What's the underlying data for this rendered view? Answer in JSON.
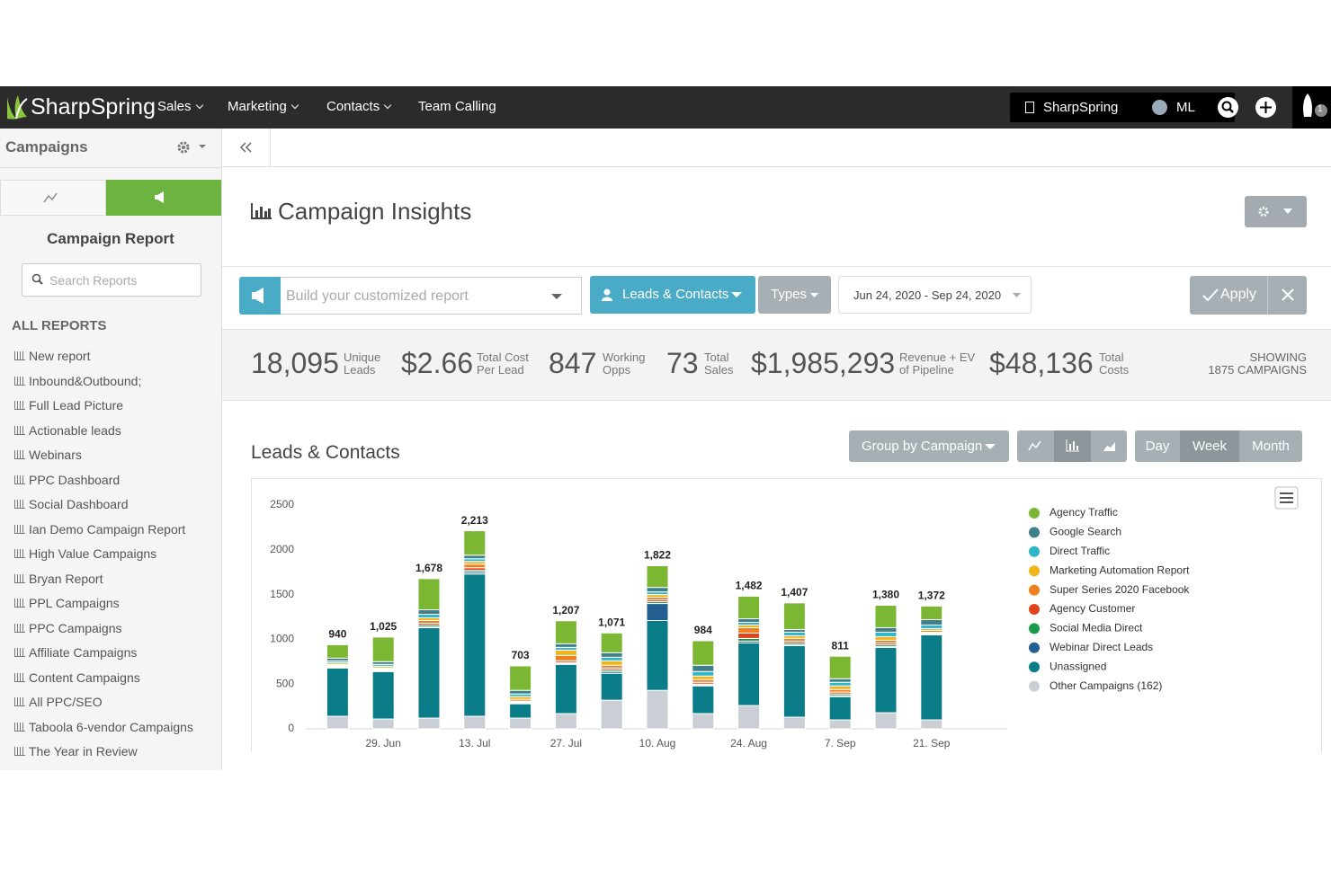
{
  "nav": {
    "brand": "SharpSpring",
    "items": [
      "Sales",
      "Marketing",
      "Contacts",
      "Team Calling"
    ],
    "account": "SharpSpring",
    "user": "ML",
    "badge": "1"
  },
  "sidebar": {
    "title": "Campaigns",
    "panel_title": "Campaign Report",
    "search_placeholder": "Search Reports",
    "section": "ALL REPORTS",
    "reports": [
      "New report",
      "Inbound&Outbound;",
      "Full Lead Picture",
      "Actionable leads",
      "Webinars",
      "PPC Dashboard",
      "Social Dashboard",
      "Ian Demo Campaign Report",
      "High Value Campaigns",
      "Bryan Report",
      "PPL Campaigns",
      "PPC Campaigns",
      "Affiliate Campaigns",
      "Content Campaigns",
      "All PPC/SEO",
      "Taboola 6-vendor Campaigns",
      "The Year in Review"
    ]
  },
  "header": {
    "title": "Campaign Insights"
  },
  "filters": {
    "placeholder": "Build your customized report",
    "leads_button": "Leads & Contacts",
    "types_button": "Types",
    "date_range": "Jun 24, 2020 - Sep 24, 2020",
    "apply": "Apply"
  },
  "stats": [
    {
      "value": "18,095",
      "label": [
        "Unique",
        "Leads"
      ]
    },
    {
      "value": "$2.66",
      "label": [
        "Total Cost",
        "Per Lead"
      ]
    },
    {
      "value": "847",
      "label": [
        "Working",
        "Opps"
      ]
    },
    {
      "value": "73",
      "label": [
        "Total",
        "Sales"
      ]
    },
    {
      "value": "$1,985,293",
      "label": [
        "Revenue + EV",
        "of Pipeline"
      ]
    },
    {
      "value": "$48,136",
      "label": [
        "Total",
        "Costs"
      ]
    }
  ],
  "showing": [
    "SHOWING",
    "1875 CAMPAIGNS"
  ],
  "chart_section": {
    "title": "Leads & Contacts",
    "group_button": "Group by Campaign",
    "periods": [
      "Day",
      "Week",
      "Month"
    ],
    "active_period": "Week"
  },
  "chart_data": {
    "type": "bar",
    "stacked": true,
    "categories": [
      null,
      "29. Jun",
      null,
      "13. Jul",
      null,
      "27. Jul",
      null,
      "10. Aug",
      null,
      "24. Aug",
      null,
      "7. Sep",
      null,
      "21. Sep"
    ],
    "ylim": [
      0,
      2500
    ],
    "yticks": [
      0,
      500,
      1000,
      1500,
      2000,
      2500
    ],
    "totals": [
      940,
      1025,
      1678,
      2213,
      703,
      1207,
      1071,
      1822,
      984,
      1482,
      1407,
      811,
      1380,
      1372
    ],
    "total_labels": [
      "940",
      "1,025",
      "1,678",
      "2,213",
      "703",
      "1,207",
      "1,071",
      "1,822",
      "984",
      "1,482",
      "1,407",
      "811",
      "1,380",
      "1,372"
    ],
    "legend": "right",
    "series": [
      {
        "name": "Agency Traffic",
        "color": "#7cb733",
        "values": [
          150,
          275,
          348,
          273,
          273,
          257,
          221,
          242,
          274,
          252,
          297,
          251,
          250,
          152
        ]
      },
      {
        "name": "Google Search",
        "color": "#3f7f89",
        "values": [
          30,
          30,
          50,
          40,
          40,
          40,
          50,
          50,
          70,
          40,
          30,
          40,
          50,
          60
        ]
      },
      {
        "name": "Direct Traffic",
        "color": "#2fb6c9",
        "values": [
          20,
          20,
          40,
          30,
          30,
          30,
          40,
          30,
          50,
          30,
          40,
          40,
          50,
          40
        ]
      },
      {
        "name": "Marketing Automation Report",
        "color": "#f1b51c",
        "values": [
          20,
          20,
          30,
          30,
          30,
          60,
          50,
          30,
          40,
          30,
          30,
          40,
          40,
          20
        ]
      },
      {
        "name": "Super Series 2020 Facebook",
        "color": "#f0801f",
        "values": [
          10,
          10,
          30,
          40,
          20,
          60,
          30,
          30,
          30,
          60,
          30,
          30,
          30,
          20
        ]
      },
      {
        "name": "Agency Customer",
        "color": "#e0441f",
        "values": [
          10,
          10,
          20,
          30,
          10,
          20,
          20,
          20,
          20,
          60,
          20,
          20,
          20,
          10
        ]
      },
      {
        "name": "Social Media Direct",
        "color": "#1a9a4b",
        "values": [
          10,
          10,
          20,
          20,
          10,
          10,
          20,
          20,
          10,
          30,
          20,
          20,
          20,
          10
        ]
      },
      {
        "name": "Webinar Direct Leads",
        "color": "#245f92",
        "values": [
          10,
          10,
          10,
          20,
          10,
          10,
          20,
          190,
          10,
          20,
          10,
          10,
          10,
          10
        ]
      },
      {
        "name": "Unassigned",
        "color": "#0b7d88",
        "values": [
          540,
          530,
          1010,
          1590,
          160,
          550,
          300,
          780,
          310,
          700,
          800,
          260,
          730,
          950
        ]
      },
      {
        "name": "Other Campaigns (162)",
        "color": "#c9cfd4",
        "values": [
          140,
          110,
          120,
          140,
          120,
          170,
          320,
          430,
          170,
          260,
          130,
          100,
          180,
          100
        ]
      }
    ]
  }
}
